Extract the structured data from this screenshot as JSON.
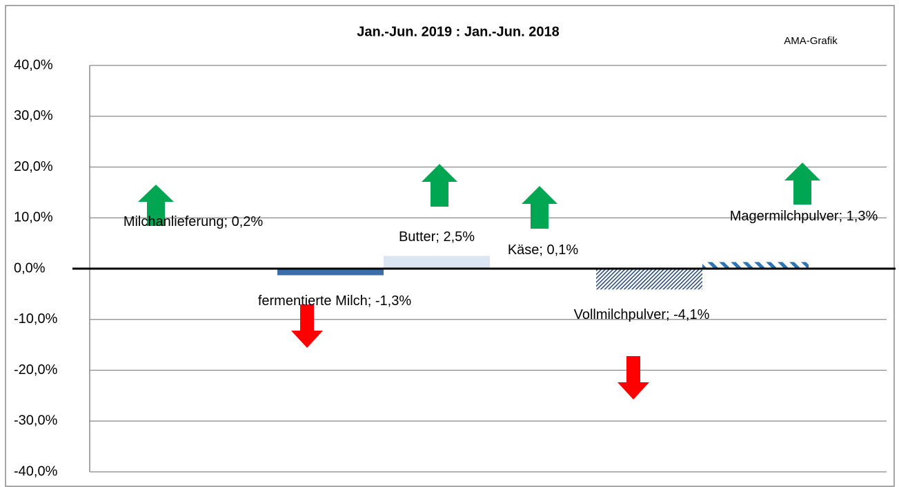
{
  "chart_data": {
    "type": "bar",
    "title": "Jan.-Jun. 2019 : Jan.-Jun. 2018",
    "annotation": "AMA-Grafik",
    "categories": [
      "Milchanlieferung",
      "fermentierte Milch",
      "Butter",
      "Käse",
      "Vollmilchpulver",
      "Magermilchpulver"
    ],
    "values": [
      0.2,
      -1.3,
      2.5,
      0.1,
      -4.1,
      1.3
    ],
    "value_labels": [
      "Milchanlieferung; 0,2%",
      "fermentierte Milch; -1,3%",
      "Butter; 2,5%",
      "Käse; 0,1%",
      "Vollmilchpulver; -4,1%",
      "Magermilchpulver; 1,3%"
    ],
    "colors": [
      "#3d5f80",
      "#3b6ea8",
      "#dce6f2",
      "#dfe8f3",
      "#2f4f7a",
      "#2e75b6"
    ],
    "ylim": [
      -40,
      40
    ],
    "yticks": [
      {
        "value": -40,
        "label": "-40,0%"
      },
      {
        "value": -30,
        "label": "-30,0%"
      },
      {
        "value": -20,
        "label": "-20,0%"
      },
      {
        "value": -10,
        "label": "-10,0%"
      },
      {
        "value": 0,
        "label": "0,0%"
      },
      {
        "value": 10,
        "label": "10,0%"
      },
      {
        "value": 20,
        "label": "20,0%"
      },
      {
        "value": 30,
        "label": "30,0%"
      },
      {
        "value": 40,
        "label": "40,0%"
      }
    ],
    "grid": true
  }
}
